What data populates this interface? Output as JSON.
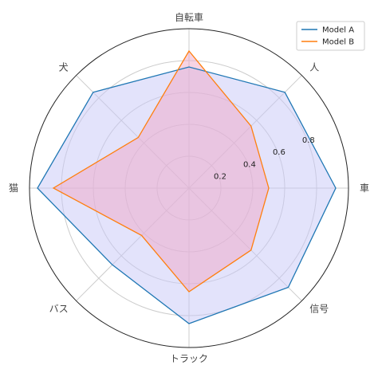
{
  "chart_data": {
    "type": "radar",
    "title": "",
    "categories": [
      "車",
      "人",
      "自転車",
      "犬",
      "猫",
      "バス",
      "トラック",
      "信号"
    ],
    "rlim": [
      0,
      1.0
    ],
    "rticks": [
      0.2,
      0.4,
      0.6,
      0.8
    ],
    "rtick_labels": [
      "0.2",
      "0.4",
      "0.6",
      "0.8"
    ],
    "grid": true,
    "legend_position": "top-right",
    "series": [
      {
        "name": "Model A",
        "values": [
          0.92,
          0.85,
          0.76,
          0.85,
          0.95,
          0.68,
          0.85,
          0.88
        ],
        "color": "#1f77b4",
        "fill": "#c8c8f8"
      },
      {
        "name": "Model B",
        "values": [
          0.5,
          0.55,
          0.86,
          0.45,
          0.85,
          0.42,
          0.65,
          0.55
        ],
        "color": "#ff7f0e",
        "fill": "#f0a8c8"
      }
    ]
  }
}
